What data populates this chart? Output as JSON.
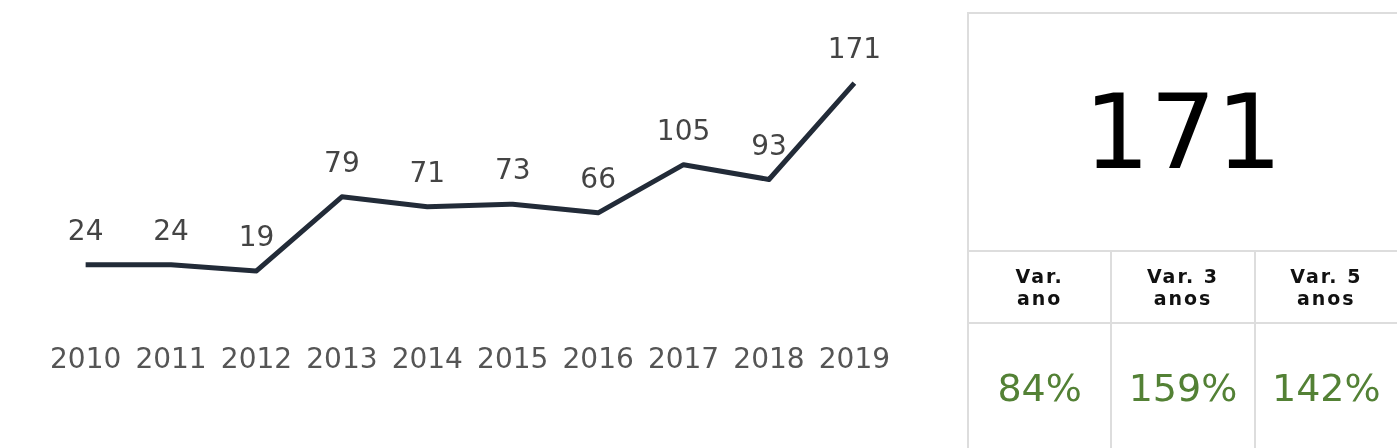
{
  "chart_data": [
    {
      "type": "line",
      "categories": [
        "2010",
        "2011",
        "2012",
        "2013",
        "2014",
        "2015",
        "2016",
        "2017",
        "2018",
        "2019"
      ],
      "series": [
        {
          "color": "#222b38",
          "values": [
            24,
            24,
            19,
            79,
            71,
            73,
            66,
            105,
            93,
            171
          ]
        }
      ],
      "data_labels": true,
      "tick_labels": "x",
      "grid": false,
      "legend": false,
      "marker": "none"
    },
    {
      "type": "other",
      "title": "171",
      "categories": [
        "Var. ano",
        "Var. 3 anos",
        "Var. 5 anos"
      ],
      "annotations": [
        "84%",
        "159%",
        "142%"
      ],
      "color": "#538135"
    }
  ]
}
